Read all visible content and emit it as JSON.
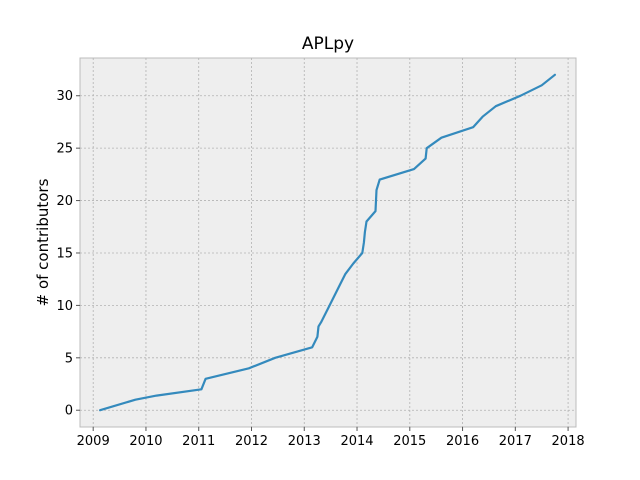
{
  "chart_data": {
    "type": "line",
    "title": "APLpy",
    "xlabel": "",
    "ylabel": "# of contributors",
    "xlim": [
      2008.75,
      2018.15
    ],
    "ylim": [
      -1.6,
      33.6
    ],
    "xticks": [
      2009,
      2010,
      2011,
      2012,
      2013,
      2014,
      2015,
      2016,
      2017,
      2018
    ],
    "yticks": [
      0,
      5,
      10,
      15,
      20,
      25,
      30
    ],
    "grid": true,
    "legend": "none",
    "colors": {
      "line": "#348ABD",
      "plot_background": "#EEEEEE",
      "grid": "#B2B2B2",
      "spine": "#BCBCBC"
    },
    "series": [
      {
        "x": [
          2009.13,
          2009.8,
          2010.2,
          2011.05,
          2011.13,
          2011.95,
          2012.45,
          2013.15,
          2013.25,
          2013.27,
          2013.32,
          2013.48,
          2013.68,
          2013.78,
          2013.93,
          2014.1,
          2014.13,
          2014.15,
          2014.18,
          2014.35,
          2014.37,
          2014.43,
          2015.08,
          2015.3,
          2015.32,
          2015.6,
          2016.2,
          2016.38,
          2016.63,
          2017.1,
          2017.5,
          2017.75
        ],
        "y": [
          0,
          1,
          1.4,
          2,
          3,
          4,
          5,
          6,
          7,
          8,
          8.4,
          10,
          12,
          13,
          14,
          15,
          16,
          17,
          18,
          19,
          21,
          22,
          23,
          24,
          25,
          26,
          27,
          28,
          29,
          30,
          31,
          32
        ]
      }
    ]
  }
}
